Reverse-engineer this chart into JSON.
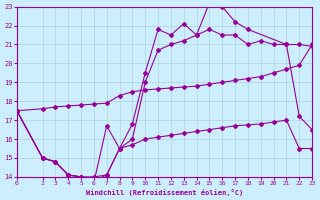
{
  "xlabel": "Windchill (Refroidissement éolien,°C)",
  "background_color": "#cceeff",
  "line_color": "#990099",
  "grid_color": "#aacccc",
  "xmin": 0,
  "xmax": 23,
  "ymin": 14,
  "ymax": 23,
  "x_ticks": [
    0,
    2,
    3,
    4,
    5,
    6,
    7,
    8,
    9,
    10,
    11,
    12,
    13,
    14,
    15,
    16,
    17,
    18,
    19,
    20,
    21,
    22,
    23
  ],
  "y_ticks": [
    14,
    15,
    16,
    17,
    18,
    19,
    20,
    21,
    22,
    23
  ],
  "line1_x": [
    0,
    2,
    3,
    4,
    5,
    6,
    7,
    8,
    9,
    10,
    11,
    12,
    13,
    14,
    15,
    16,
    17,
    18,
    21,
    22,
    23
  ],
  "line1_y": [
    17.5,
    15.0,
    14.8,
    14.1,
    14.0,
    13.7,
    16.7,
    15.5,
    16.8,
    19.5,
    21.8,
    21.5,
    22.1,
    21.5,
    23.2,
    23.0,
    22.2,
    21.8,
    21.0,
    17.2,
    16.5
  ],
  "line2_x": [
    0,
    2,
    3,
    4,
    5,
    6,
    7,
    8,
    9,
    10,
    11,
    12,
    13,
    14,
    15,
    16,
    17,
    18,
    19,
    20,
    21,
    22,
    23
  ],
  "line2_y": [
    17.5,
    15.0,
    14.8,
    14.1,
    14.0,
    13.8,
    14.1,
    15.5,
    16.0,
    19.0,
    20.7,
    21.0,
    21.2,
    21.5,
    21.8,
    21.5,
    21.5,
    21.0,
    21.2,
    21.0,
    21.0,
    21.0,
    20.9
  ],
  "line3_x": [
    0,
    2,
    3,
    4,
    5,
    6,
    7,
    8,
    9,
    10,
    11,
    12,
    13,
    14,
    15,
    16,
    17,
    18,
    19,
    20,
    21,
    22,
    23
  ],
  "line3_y": [
    17.5,
    17.6,
    17.7,
    17.75,
    17.8,
    17.85,
    17.9,
    18.3,
    18.5,
    18.6,
    18.65,
    18.7,
    18.75,
    18.8,
    18.9,
    19.0,
    19.1,
    19.2,
    19.3,
    19.5,
    19.7,
    19.9,
    21.0
  ],
  "line4_x": [
    0,
    2,
    3,
    4,
    5,
    6,
    7,
    8,
    9,
    10,
    11,
    12,
    13,
    14,
    15,
    16,
    17,
    18,
    19,
    20,
    21,
    22,
    23
  ],
  "line4_y": [
    17.5,
    15.0,
    14.8,
    14.1,
    14.0,
    14.0,
    14.1,
    15.5,
    15.7,
    16.0,
    16.1,
    16.2,
    16.3,
    16.4,
    16.5,
    16.6,
    16.7,
    16.75,
    16.8,
    16.9,
    17.0,
    15.5,
    15.5
  ]
}
